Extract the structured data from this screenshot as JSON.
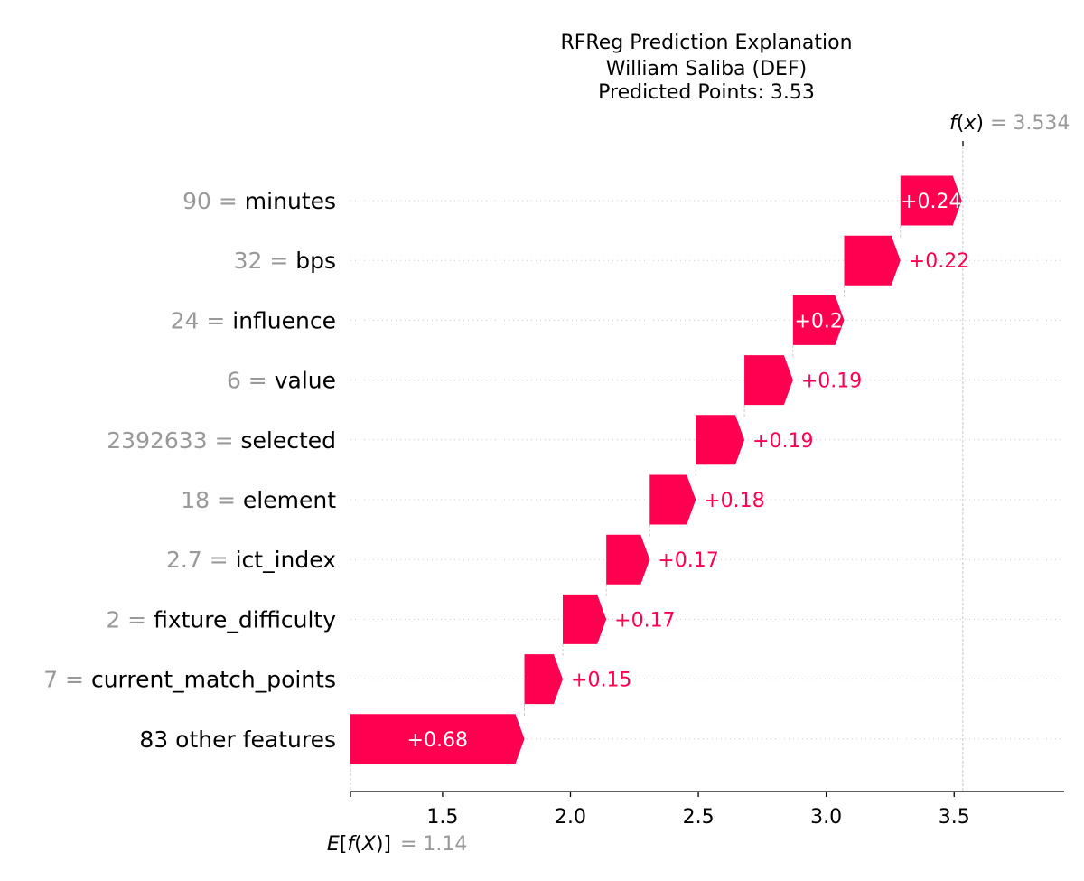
{
  "chart_data": {
    "type": "waterfall",
    "title_lines": [
      "RFReg Prediction Explanation",
      "William Saliba (DEF)",
      "Predicted Points: 3.53"
    ],
    "base_value": 1.14,
    "base_label": "= 1.14",
    "final_value": 3.534,
    "final_label": "= 3.534",
    "xlim": [
      1.14,
      3.93
    ],
    "x_ticks": [
      1.5,
      2.0,
      2.5,
      3.0,
      3.5
    ],
    "x_tick_labels": [
      "1.5",
      "2.0",
      "2.5",
      "3.0",
      "3.5"
    ],
    "positive_color": "#ff0051",
    "features": [
      {
        "value": "90",
        "name": "minutes",
        "contribution": 0.24,
        "label": "+0.24",
        "label_inside": true
      },
      {
        "value": "32",
        "name": "bps",
        "contribution": 0.22,
        "label": "+0.22",
        "label_inside": false
      },
      {
        "value": "24",
        "name": "influence",
        "contribution": 0.2,
        "label": "+0.2",
        "label_inside": true
      },
      {
        "value": "6",
        "name": "value",
        "contribution": 0.19,
        "label": "+0.19",
        "label_inside": false
      },
      {
        "value": "2392633",
        "name": "selected",
        "contribution": 0.19,
        "label": "+0.19",
        "label_inside": false
      },
      {
        "value": "18",
        "name": "element",
        "contribution": 0.18,
        "label": "+0.18",
        "label_inside": false
      },
      {
        "value": "2.7",
        "name": "ict_index",
        "contribution": 0.17,
        "label": "+0.17",
        "label_inside": false
      },
      {
        "value": "2",
        "name": "fixture_difficulty",
        "contribution": 0.17,
        "label": "+0.17",
        "label_inside": false
      },
      {
        "value": "7",
        "name": "current_match_points",
        "contribution": 0.15,
        "label": "+0.15",
        "label_inside": false
      },
      {
        "value": "",
        "name": "83 other features",
        "contribution": 0.68,
        "label": "+0.68",
        "label_inside": true
      }
    ]
  }
}
